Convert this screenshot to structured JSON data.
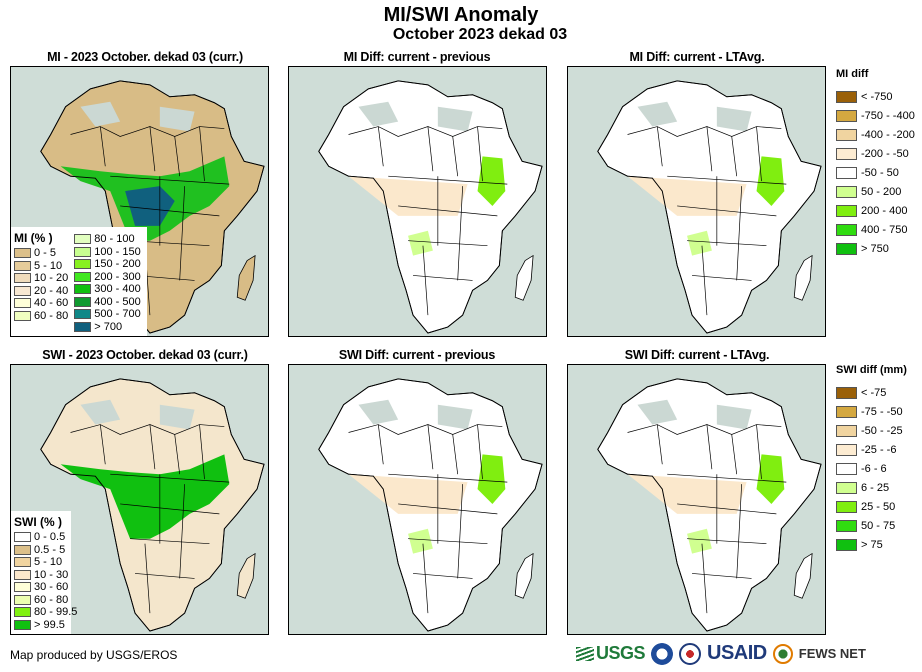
{
  "header": {
    "title": "MI/SWI Anomaly",
    "subtitle": "October 2023 dekad 03"
  },
  "panels": [
    {
      "id": "mi-current",
      "title": "MI - 2023 October. dekad 03 (curr.)",
      "variable": "MI",
      "type": "current"
    },
    {
      "id": "mi-diff-previous",
      "title": "MI Diff: current - previous",
      "variable": "MI",
      "type": "diff"
    },
    {
      "id": "mi-diff-ltavg",
      "title": "MI Diff: current - LTAvg.",
      "variable": "MI",
      "type": "diff"
    },
    {
      "id": "swi-current",
      "title": "SWI - 2023 October. dekad 03 (curr.)",
      "variable": "SWI",
      "type": "current"
    },
    {
      "id": "swi-diff-previous",
      "title": "SWI Diff: current - previous",
      "variable": "SWI",
      "type": "diff"
    },
    {
      "id": "swi-diff-ltavg",
      "title": "SWI Diff: current - LTAvg.",
      "variable": "SWI",
      "type": "diff"
    }
  ],
  "legends": {
    "mi_current": {
      "title": "MI (% )",
      "items": [
        {
          "label": "0 - 5",
          "color": "#dcc08a"
        },
        {
          "label": "5 - 10",
          "color": "#e6cc9a"
        },
        {
          "label": "10 - 20",
          "color": "#f0dcbc"
        },
        {
          "label": "20 - 40",
          "color": "#f8e8d2"
        },
        {
          "label": "40 - 60",
          "color": "#ffffd8"
        },
        {
          "label": "60 - 80",
          "color": "#f0ffc0"
        },
        {
          "label": "80 - 100",
          "color": "#e2ffc0"
        },
        {
          "label": "100 - 150",
          "color": "#c8ff90"
        },
        {
          "label": "150 - 200",
          "color": "#88f020"
        },
        {
          "label": "200 - 300",
          "color": "#40e820"
        },
        {
          "label": "300 - 400",
          "color": "#10c010"
        },
        {
          "label": "400 - 500",
          "color": "#109a30"
        },
        {
          "label": "500 - 700",
          "color": "#108888"
        },
        {
          "label": "> 700",
          "color": "#10607e"
        }
      ]
    },
    "swi_current": {
      "title": "SWI (% )",
      "items": [
        {
          "label": "0 - 0.5",
          "color": "#ffffff"
        },
        {
          "label": "0.5 - 5",
          "color": "#dcc08a"
        },
        {
          "label": "5 - 10",
          "color": "#f0d4a0"
        },
        {
          "label": "10 - 30",
          "color": "#fce8cc"
        },
        {
          "label": "30 - 60",
          "color": "#ffffd8"
        },
        {
          "label": "60 - 80",
          "color": "#ecffb0"
        },
        {
          "label": "80 - 99.5",
          "color": "#80f010"
        },
        {
          "label": "> 99.5",
          "color": "#10c010"
        }
      ]
    },
    "mi_diff": {
      "title": "MI diff",
      "items": [
        {
          "label": "< -750",
          "color": "#9a6008"
        },
        {
          "label": "-750 - -400",
          "color": "#d4a840"
        },
        {
          "label": "-400 - -200",
          "color": "#f0d4a0"
        },
        {
          "label": "-200 - -50",
          "color": "#fdecd2"
        },
        {
          "label": "-50 - 50",
          "color": "#ffffff"
        },
        {
          "label": "50 - 200",
          "color": "#d0ff90"
        },
        {
          "label": "200 - 400",
          "color": "#80ee10"
        },
        {
          "label": "400 - 750",
          "color": "#30dc10"
        },
        {
          "label": "> 750",
          "color": "#10c010"
        }
      ]
    },
    "swi_diff": {
      "title": "SWI diff (mm)",
      "items": [
        {
          "label": "< -75",
          "color": "#9a6008"
        },
        {
          "label": "-75 - -50",
          "color": "#d4a840"
        },
        {
          "label": "-50 - -25",
          "color": "#f0d4a0"
        },
        {
          "label": "-25 - -6",
          "color": "#fdecd2"
        },
        {
          "label": "-6 - 6",
          "color": "#ffffff"
        },
        {
          "label": "6 - 25",
          "color": "#d0ff90"
        },
        {
          "label": "25 - 50",
          "color": "#80ee10"
        },
        {
          "label": "50 - 75",
          "color": "#30dc10"
        },
        {
          "label": "> 75",
          "color": "#10c010"
        }
      ]
    }
  },
  "map_colors": {
    "water": "#cfddd7",
    "border": "#000000",
    "no_data": "#cbd8d3"
  },
  "footer": {
    "credit": "Map produced by USGS/EROS",
    "logos": {
      "usgs": "USGS",
      "usaid": "USAID",
      "fews": "FEWS NET"
    }
  }
}
